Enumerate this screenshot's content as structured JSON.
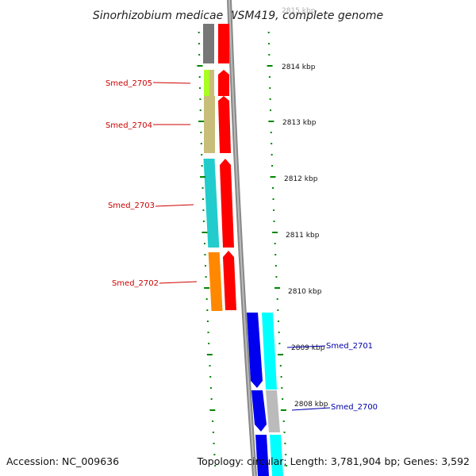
{
  "title": "Sinorhizobium medicae WSM419, complete genome",
  "accession": "Accession: NC_009636",
  "topology": "Topology: circular; Length: 3,781,904 bp; Genes: 3,592",
  "tick_labels": [
    "2815 kbp",
    "2814 kbp",
    "2813 kbp",
    "2812 kbp",
    "2811 kbp",
    "2810 kbp",
    "2809 kbp",
    "2808 kbp"
  ],
  "left_gene_labels": [
    "Smed_2705",
    "Smed_2704",
    "Smed_2703",
    "Smed_2702"
  ],
  "right_gene_labels": [
    "Smed_2701",
    "Smed_2700"
  ],
  "colors": {
    "backbone": "#999999",
    "cds_red": "#ff0000",
    "cds_blue": "#0000ee",
    "gene_olive": "#c8be7a",
    "gene_cyan": "#22cccc",
    "gene_orange": "#ff8800",
    "gene_lime": "#aaff22",
    "gene_gray": "#777777",
    "gene_lightgray": "#bbbbbb",
    "gene_aqua": "#00ffff",
    "tick_green": "#008800",
    "left_label_color": "#cc0000",
    "right_label_color": "#0000aa"
  }
}
